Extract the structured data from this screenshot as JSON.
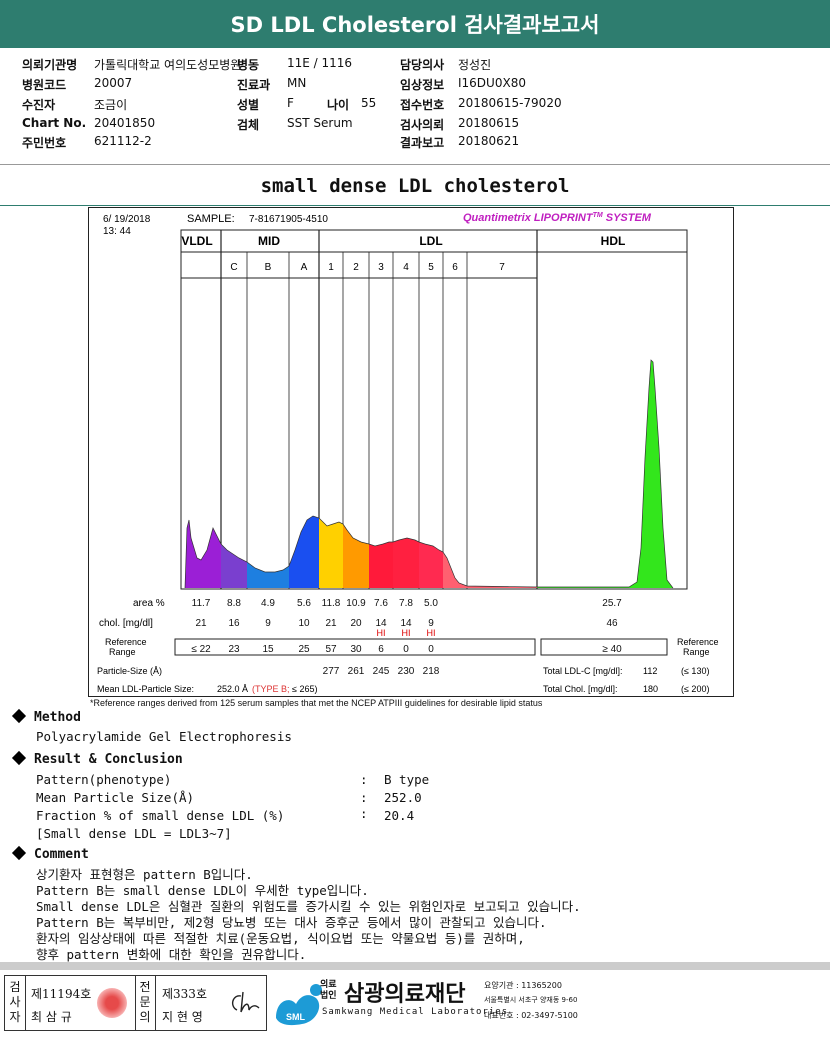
{
  "header": {
    "title": "SD LDL Cholesterol 검사결과보고서"
  },
  "patient_info": {
    "col1": [
      {
        "label": "의뢰기관명",
        "value": "가톨릭대학교 여의도성모병원"
      },
      {
        "label": "병원코드",
        "value": "20007"
      },
      {
        "label": "수진자",
        "value": "조금이"
      },
      {
        "label": "Chart No.",
        "value": "20401850"
      },
      {
        "label": "주민번호",
        "value": "621112-2"
      }
    ],
    "col2": [
      {
        "label": "병동",
        "value": "11E / 1116"
      },
      {
        "label": "진료과",
        "value": "MN"
      },
      {
        "label": "성별",
        "value": "F"
      },
      {
        "label": "검체",
        "value": "SST Serum"
      }
    ],
    "age": {
      "label": "나이",
      "value": "55"
    },
    "col3": [
      {
        "label": "담당의사",
        "value": "정성진"
      },
      {
        "label": "임상정보",
        "value": "I16DU0X80"
      },
      {
        "label": "접수번호",
        "value": "20180615-79020"
      },
      {
        "label": "검사의뢰",
        "value": "20180615"
      },
      {
        "label": "결과보고",
        "value": "20180621"
      }
    ]
  },
  "section_title": "small dense LDL cholesterol",
  "chart_data": {
    "type": "area",
    "date": "6/ 19/2018",
    "time": "13: 44",
    "sample_label": "SAMPLE:",
    "sample_id": "7-81671905-4510",
    "brand": "Quantimetrix LIPOPRINT",
    "brand_tm": "TM",
    "brand_suffix": " SYSTEM",
    "groups": [
      "VLDL",
      "MID",
      "LDL",
      "HDL"
    ],
    "bands": [
      "C",
      "B",
      "A",
      "1",
      "2",
      "3",
      "4",
      "5",
      "6",
      "7"
    ],
    "band_colors": {
      "VLDL": "#9b1fd6",
      "C": "#7a3fcf",
      "B": "#1e7fe0",
      "A": "#1a4ff0",
      "1": "#ffd000",
      "2": "#ff9a00",
      "3": "#ff1a3a",
      "4": "#ff2040",
      "5": "#ff2a50",
      "HDL": "#33e61c"
    },
    "columns": [
      "VLDL",
      "C",
      "B",
      "A",
      "1",
      "2",
      "3",
      "4",
      "5",
      "6",
      "7",
      "HDL"
    ],
    "area_label": "area %",
    "area": [
      "11.7",
      "8.8",
      "4.9",
      "5.6",
      "11.8",
      "10.9",
      "7.6",
      "7.8",
      "5.0",
      "",
      "",
      "25.7"
    ],
    "chol_label": "chol. [mg/dl]",
    "chol": [
      "21",
      "16",
      "9",
      "10",
      "21",
      "20",
      "14",
      "14",
      "9",
      "",
      "",
      "46"
    ],
    "hi_flag": [
      "",
      "",
      "",
      "",
      "",
      "",
      "HI",
      "HI",
      "HI",
      "",
      "",
      ""
    ],
    "ref_label": "Reference Range",
    "ref": [
      "≤ 22",
      "23",
      "15",
      "25",
      "57",
      "30",
      "6",
      "0",
      "0",
      "",
      "",
      "≥ 40"
    ],
    "ref_right_label": "Reference Range",
    "particle_size_label": "Particle-Size (Å)",
    "particle_size": [
      "",
      "",
      "",
      "",
      "277",
      "261",
      "245",
      "230",
      "218",
      "",
      "",
      ""
    ],
    "total_ldl_label": "Total LDL-C [mg/dl]:",
    "total_ldl_value": "112",
    "total_ldl_ref": "(≤ 130)",
    "mean_size_label": "Mean LDL-Particle Size:",
    "mean_size_value": "252.0 Å",
    "mean_size_type": "(TYPE B;",
    "mean_size_ref": " ≤ 265)",
    "total_chol_label": "Total Chol. [mg/dl]:",
    "total_chol_value": "180",
    "total_chol_ref": "(≤ 200)",
    "footnote": "*Reference ranges derived from 125 serum samples that met the NCEP ATPIII guidelines for desirable lipid status"
  },
  "method": {
    "heading": "Method",
    "text": "Polyacrylamide Gel Electrophoresis"
  },
  "result": {
    "heading": "Result & Conclusion",
    "rows": [
      {
        "label": "Pattern(phenotype)",
        "colon": ":",
        "value": "B type"
      },
      {
        "label": "Mean Particle Size(Å)",
        "colon": ":",
        "value": "252.0"
      },
      {
        "label": "Fraction % of small dense LDL (%)",
        "colon": ":",
        "value": "20.4"
      }
    ],
    "note": "[Small dense LDL = LDL3~7]"
  },
  "comment": {
    "heading": "Comment",
    "lines": [
      "상기환자 표현형은 pattern B입니다.",
      "Pattern B는 small dense LDL이 우세한 type입니다.",
      "Small dense LDL은 심혈관 질환의 위험도를 증가시킬 수 있는 위험인자로 보고되고 있습니다.",
      "Pattern B는 복부비만, 제2형 당뇨병 또는 대사 증후군 등에서 많이 관찰되고 있습니다.",
      "환자의 임상상태에 따른 적절한 치료(운동요법, 식이요법 또는 약물요법 등)를 권하며,",
      "향후 pattern 변화에 대한 확인을 권유합니다."
    ]
  },
  "footer": {
    "examiner_label": "검사자",
    "examiner_no": "제11194호",
    "examiner_name": "최 삼 규",
    "specialist_label": "전문의",
    "specialist_no": "제333호",
    "specialist_name": "지 현 영",
    "org_prefix": "의료법인",
    "org_name": "삼광의료재단",
    "org_en": "Samkwang Medical Laboratories",
    "logo_text": "SML",
    "code": "요양기관 : 11365200",
    "address": "서울특별시 서초구 양재동 9-60",
    "phone": "대표번호 : 02-3497-5100"
  }
}
